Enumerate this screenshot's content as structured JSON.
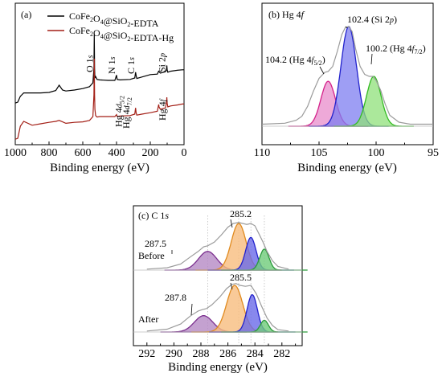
{
  "chart_data": [
    {
      "type": "line",
      "panel_label": "(a)",
      "xlabel": "Binding energy (eV)",
      "xlim": [
        1000,
        0
      ],
      "xticks": [
        "1000",
        "800",
        "600",
        "400",
        "200",
        "0"
      ],
      "legend_position": "top",
      "series": [
        {
          "name": "CoFe2O4@SiO2-EDTA",
          "color": "#000000",
          "x": [
            1000,
            985,
            970,
            950,
            900,
            850,
            800,
            760,
            740,
            720,
            700,
            650,
            600,
            560,
            540,
            534,
            532,
            530,
            528,
            524,
            515,
            500,
            450,
            410,
            400,
            396,
            380,
            320,
            292,
            287,
            284,
            280,
            250,
            200,
            158,
            152,
            150,
            148,
            140,
            110,
            104,
            102,
            100,
            96,
            80,
            40,
            10,
            0
          ],
          "y": [
            0.78,
            0.8,
            0.92,
            0.99,
            0.99,
            0.99,
            1.0,
            1.04,
            1.15,
            1.05,
            1.03,
            1.05,
            1.08,
            1.12,
            1.2,
            1.5,
            2.2,
            1.5,
            1.3,
            1.33,
            1.27,
            1.26,
            1.25,
            1.25,
            1.36,
            1.27,
            1.26,
            1.27,
            1.3,
            1.42,
            1.35,
            1.29,
            1.32,
            1.37,
            1.38,
            1.43,
            1.44,
            1.43,
            1.4,
            1.43,
            1.47,
            1.56,
            1.47,
            1.42,
            1.44,
            1.46,
            1.47,
            1.47
          ]
        },
        {
          "name": "CoFe2O4@SiO2-EDTA-Hg",
          "color": "#a31f16",
          "x": [
            1000,
            985,
            970,
            950,
            900,
            850,
            800,
            760,
            740,
            720,
            700,
            650,
            600,
            560,
            540,
            534,
            532,
            530,
            528,
            524,
            515,
            500,
            450,
            410,
            400,
            396,
            380,
            320,
            292,
            287,
            284,
            280,
            250,
            200,
            158,
            152,
            150,
            148,
            140,
            110,
            104,
            102,
            100,
            96,
            80,
            40,
            10,
            0
          ],
          "y": [
            0.03,
            0.05,
            0.3,
            0.4,
            0.32,
            0.35,
            0.38,
            0.4,
            0.42,
            0.39,
            0.36,
            0.38,
            0.39,
            0.42,
            0.5,
            0.95,
            1.7,
            0.95,
            0.65,
            0.52,
            0.49,
            0.5,
            0.5,
            0.5,
            0.54,
            0.5,
            0.51,
            0.52,
            0.55,
            0.68,
            0.58,
            0.53,
            0.55,
            0.58,
            0.61,
            0.72,
            0.75,
            0.7,
            0.65,
            0.68,
            0.8,
            0.9,
            0.78,
            0.7,
            0.72,
            0.74,
            0.76,
            0.76
          ]
        }
      ],
      "annotations": [
        {
          "text": "O 1",
          "sub": "s",
          "x": 532,
          "vertical": true
        },
        {
          "text": "N 1",
          "sub": "s",
          "x": 400,
          "vertical": true
        },
        {
          "text": "C 1",
          "sub": "s",
          "x": 285,
          "vertical": true
        },
        {
          "text": "Si 2",
          "sub": "p",
          "x": 102,
          "vertical": true
        },
        {
          "text": "Hg 4",
          "sub": "d5/2",
          "x": 360,
          "vertical": true
        },
        {
          "text": "Hg 4",
          "sub": "d7/2",
          "x": 380,
          "vertical": true
        },
        {
          "text": "Hg 4",
          "sub": "f",
          "x": 101,
          "vertical": true
        }
      ]
    },
    {
      "type": "line",
      "panel_label": "(b) Hg 4",
      "panel_label_sub": "f",
      "xlabel": "Binding energy (eV)",
      "xlim": [
        110,
        95
      ],
      "xticks": [
        "110",
        "105",
        "100",
        "95"
      ],
      "experimental": {
        "color": "#9b9b9b",
        "x": [
          110,
          108,
          107,
          106.5,
          106,
          105.5,
          105,
          104.5,
          104.2,
          103.8,
          103.4,
          103.0,
          102.7,
          102.4,
          102.1,
          101.8,
          101.4,
          101.0,
          100.6,
          100.3,
          100.0,
          99.6,
          99.2,
          98.8,
          98.0,
          97,
          95
        ],
        "y": [
          0.02,
          0.03,
          0.06,
          0.1,
          0.2,
          0.35,
          0.48,
          0.54,
          0.55,
          0.6,
          0.75,
          0.92,
          0.99,
          1.0,
          0.95,
          0.78,
          0.6,
          0.52,
          0.5,
          0.5,
          0.46,
          0.36,
          0.22,
          0.11,
          0.04,
          0.02,
          0.02
        ]
      },
      "series": [
        {
          "name": "104.2",
          "center": 104.2,
          "height": 0.45,
          "fwhm": 1.5,
          "color": "#d4228a",
          "fill": "#e88ccb"
        },
        {
          "name": "102.4",
          "center": 102.4,
          "height": 1.0,
          "fwhm": 1.6,
          "color": "#2222cc",
          "fill": "#7d7df0"
        },
        {
          "name": "100.2",
          "center": 100.2,
          "height": 0.5,
          "fwhm": 1.5,
          "color": "#33bb22",
          "fill": "#8fe07a"
        }
      ],
      "annotations": [
        {
          "value": "102.4",
          "text": "102.4 (Si 2",
          "sub": "p",
          "tail": ")"
        },
        {
          "value": "104.2",
          "text": "104.2 (Hg 4",
          "sub": "f5/2",
          "tail": ")"
        },
        {
          "value": "100.2",
          "text": "100.2 (Hg 4",
          "sub": "f7/2",
          "tail": ")"
        }
      ]
    },
    {
      "type": "line",
      "panel_label": "(c) C 1",
      "panel_label_sub": "s",
      "xlabel": "Binding energy (eV)",
      "xlim": [
        293,
        280.5
      ],
      "xticks": [
        "292",
        "290",
        "288",
        "286",
        "284",
        "282"
      ],
      "reference_lines": [
        287.5,
        285.2,
        284.3,
        283.3
      ],
      "groups": [
        {
          "label": "Before",
          "experimental": {
            "color": "#9b9b9b",
            "x": [
              292,
              290.5,
              289.5,
              288.8,
              288.2,
              287.8,
              287.5,
              287.0,
              286.5,
              286.0,
              285.6,
              285.2,
              284.9,
              284.6,
              284.3,
              284.0,
              283.7,
              283.4,
              283.1,
              282.7,
              282.3,
              281.5
            ],
            "y": [
              0.02,
              0.05,
              0.13,
              0.28,
              0.4,
              0.5,
              0.52,
              0.6,
              0.75,
              0.92,
              1.0,
              1.02,
              1.0,
              0.98,
              1.0,
              0.95,
              0.78,
              0.6,
              0.4,
              0.2,
              0.08,
              0.02
            ]
          },
          "series": [
            {
              "name": "287.5",
              "center": 287.5,
              "height": 0.4,
              "fwhm": 1.6,
              "color": "#7b2f8e",
              "fill": "#b58ac4"
            },
            {
              "name": "285.2",
              "center": 285.2,
              "height": 1.0,
              "fwhm": 1.3,
              "color": "#e08a1e",
              "fill": "#f7bd7e"
            },
            {
              "name": "284.3",
              "center": 284.3,
              "height": 0.7,
              "fwhm": 0.9,
              "color": "#2222cc",
              "fill": "#6a6ae8"
            },
            {
              "name": "283.3",
              "center": 283.3,
              "height": 0.45,
              "fwhm": 0.8,
              "color": "#2a9a3a",
              "fill": "#6fcc7b"
            }
          ],
          "annotations": [
            {
              "text": "285.2",
              "value": 285.2
            },
            {
              "text": "287.5",
              "value": 287.5
            }
          ]
        },
        {
          "label": "After",
          "experimental": {
            "color": "#9b9b9b",
            "x": [
              292,
              290.5,
              289.5,
              288.8,
              288.2,
              287.9,
              287.6,
              287.2,
              286.6,
              286.1,
              285.7,
              285.4,
              285.1,
              284.7,
              284.3,
              283.9,
              283.5,
              283.1,
              282.7,
              282.3,
              281.5
            ],
            "y": [
              0.02,
              0.06,
              0.17,
              0.34,
              0.45,
              0.48,
              0.5,
              0.58,
              0.75,
              0.93,
              1.02,
              1.04,
              1.0,
              0.98,
              1.0,
              0.82,
              0.55,
              0.3,
              0.14,
              0.05,
              0.02
            ]
          },
          "series": [
            {
              "name": "287.8",
              "center": 287.8,
              "height": 0.35,
              "fwhm": 1.6,
              "color": "#7b2f8e",
              "fill": "#b58ac4"
            },
            {
              "name": "285.5",
              "center": 285.5,
              "height": 1.0,
              "fwhm": 1.4,
              "color": "#e08a1e",
              "fill": "#f7bd7e"
            },
            {
              "name": "284.2",
              "center": 284.2,
              "height": 0.8,
              "fwhm": 0.9,
              "color": "#2222cc",
              "fill": "#6a6ae8"
            },
            {
              "name": "283.3",
              "center": 283.3,
              "height": 0.25,
              "fwhm": 0.7,
              "color": "#2a9a3a",
              "fill": "#6fcc7b"
            }
          ],
          "annotations": [
            {
              "text": "285.5",
              "value": 285.5
            },
            {
              "text": "287.8",
              "value": 287.8
            }
          ]
        }
      ]
    }
  ]
}
